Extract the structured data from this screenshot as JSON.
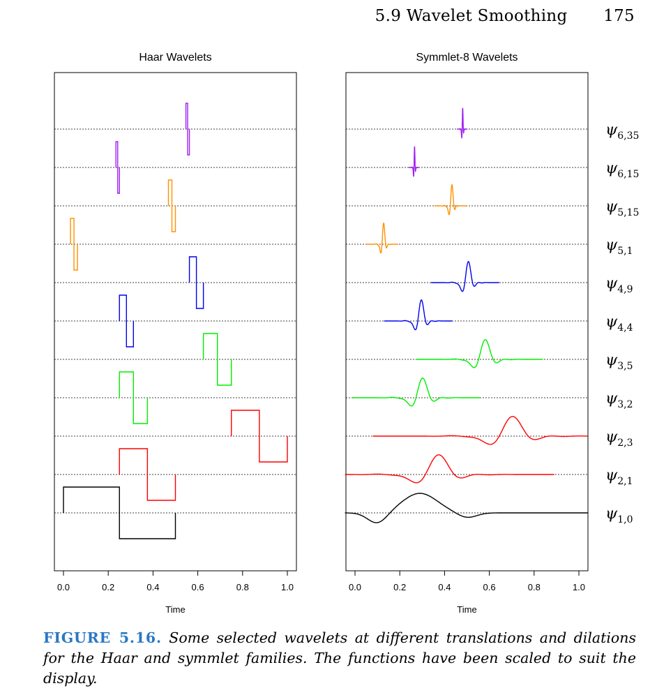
{
  "header": {
    "section": "5.9 Wavelet Smoothing",
    "page": "175"
  },
  "figure": {
    "panels": [
      {
        "title": "Haar Wavelets",
        "xlabel": "Time"
      },
      {
        "title": "Symmlet-8 Wavelets",
        "xlabel": "Time"
      }
    ],
    "xticks": [
      "0.0",
      "0.2",
      "0.4",
      "0.6",
      "0.8",
      "1.0"
    ],
    "row_labels": [
      {
        "base": "ψ",
        "sub": "6,35"
      },
      {
        "base": "ψ",
        "sub": "6,15"
      },
      {
        "base": "ψ",
        "sub": "5,15"
      },
      {
        "base": "ψ",
        "sub": "5,1"
      },
      {
        "base": "ψ",
        "sub": "4,9"
      },
      {
        "base": "ψ",
        "sub": "4,4"
      },
      {
        "base": "ψ",
        "sub": "3,5"
      },
      {
        "base": "ψ",
        "sub": "3,2"
      },
      {
        "base": "ψ",
        "sub": "2,3"
      },
      {
        "base": "ψ",
        "sub": "2,1"
      },
      {
        "base": "ψ",
        "sub": "1,0"
      }
    ],
    "colors": {
      "level1": "#000000",
      "level2": "#ff0000",
      "level3": "#00ee00",
      "level4": "#0000ee",
      "level5": "#ff9000",
      "level6": "#a020f0"
    }
  },
  "chart_data": [
    {
      "type": "line",
      "title": "Haar Wavelets",
      "xlabel": "Time",
      "xlim": [
        0,
        1
      ],
      "grid": false,
      "series": [
        {
          "name": "ψ6,35",
          "level": 6,
          "x": [
            0.5469,
            0.5547,
            0.5625
          ],
          "values": [
            1,
            -1,
            0
          ]
        },
        {
          "name": "ψ6,15",
          "level": 6,
          "x": [
            0.2344,
            0.2422,
            0.25
          ],
          "values": [
            1,
            -1,
            0
          ]
        },
        {
          "name": "ψ5,15",
          "level": 5,
          "x": [
            0.4688,
            0.4844,
            0.5
          ],
          "values": [
            1,
            -1,
            0
          ]
        },
        {
          "name": "ψ5,1",
          "level": 5,
          "x": [
            0.0313,
            0.0469,
            0.0625
          ],
          "values": [
            1,
            -1,
            0
          ]
        },
        {
          "name": "ψ4,9",
          "level": 4,
          "x": [
            0.5625,
            0.5938,
            0.625
          ],
          "values": [
            1,
            -1,
            0
          ]
        },
        {
          "name": "ψ4,4",
          "level": 4,
          "x": [
            0.25,
            0.2813,
            0.3125
          ],
          "values": [
            1,
            -1,
            0
          ]
        },
        {
          "name": "ψ3,5",
          "level": 3,
          "x": [
            0.625,
            0.6875,
            0.75
          ],
          "values": [
            1,
            -1,
            0
          ]
        },
        {
          "name": "ψ3,2",
          "level": 3,
          "x": [
            0.25,
            0.3125,
            0.375
          ],
          "values": [
            1,
            -1,
            0
          ]
        },
        {
          "name": "ψ2,3",
          "level": 2,
          "x": [
            0.75,
            0.875,
            1.0
          ],
          "values": [
            1,
            -1,
            0
          ]
        },
        {
          "name": "ψ2,1",
          "level": 2,
          "x": [
            0.25,
            0.375,
            0.5
          ],
          "values": [
            1,
            -1,
            0
          ]
        },
        {
          "name": "ψ1,0",
          "level": 1,
          "x": [
            0.0,
            0.25,
            0.5
          ],
          "values": [
            1,
            -1,
            0
          ]
        }
      ]
    },
    {
      "type": "line",
      "title": "Symmlet-8 Wavelets",
      "xlabel": "Time",
      "xlim": [
        0,
        1
      ],
      "grid": false,
      "series": [
        {
          "name": "ψ6,35",
          "level": 6,
          "center": 0.48,
          "halfwidth": 0.025
        },
        {
          "name": "ψ6,15",
          "level": 6,
          "center": 0.265,
          "halfwidth": 0.025
        },
        {
          "name": "ψ5,15",
          "level": 5,
          "center": 0.43,
          "halfwidth": 0.075
        },
        {
          "name": "ψ5,1",
          "level": 5,
          "center": 0.125,
          "halfwidth": 0.075
        },
        {
          "name": "ψ4,9",
          "level": 4,
          "center": 0.5,
          "halfwidth": 0.16
        },
        {
          "name": "ψ4,4",
          "level": 4,
          "center": 0.29,
          "halfwidth": 0.16
        },
        {
          "name": "ψ3,5",
          "level": 3,
          "center": 0.57,
          "halfwidth": 0.3
        },
        {
          "name": "ψ3,2",
          "level": 3,
          "center": 0.29,
          "halfwidth": 0.3
        },
        {
          "name": "ψ2,3",
          "level": 2,
          "center": 0.68,
          "halfwidth": 0.6
        },
        {
          "name": "ψ2,1",
          "level": 2,
          "center": 0.35,
          "halfwidth": 0.6
        },
        {
          "name": "ψ1,0",
          "level": 1,
          "center": 0.25,
          "halfwidth": 1.0
        }
      ]
    }
  ],
  "caption": {
    "label": "FIGURE 5.16.",
    "text": "Some selected wavelets at different translations and dilations for the Haar and symmlet families. The functions have been scaled to suit the display."
  }
}
